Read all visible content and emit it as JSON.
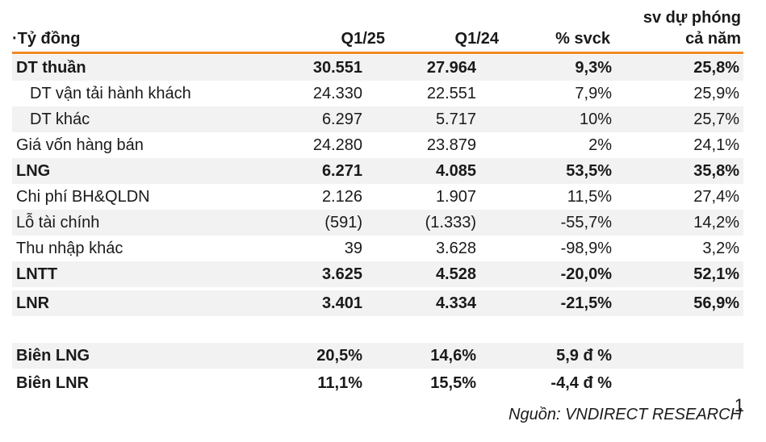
{
  "header": {
    "unit_label": "·Tỷ đồng",
    "col_q125": "Q1/25",
    "col_q124": "Q1/24",
    "col_yoy": "% svck",
    "col_fy_line1": "sv dự phóng",
    "col_fy_line2": "cả năm"
  },
  "rows": [
    {
      "label": "DT thuần",
      "q125": "30.551",
      "q124": "27.964",
      "yoy": "9,3%",
      "fy": "25,8%"
    },
    {
      "label": "DT vận tải hành khách",
      "q125": "24.330",
      "q124": "22.551",
      "yoy": "7,9%",
      "fy": "25,9%"
    },
    {
      "label": "DT khác",
      "q125": "6.297",
      "q124": "5.717",
      "yoy": "10%",
      "fy": "25,7%"
    },
    {
      "label": "Giá vốn hàng bán",
      "q125": "24.280",
      "q124": "23.879",
      "yoy": "2%",
      "fy": "24,1%"
    },
    {
      "label": "LNG",
      "q125": "6.271",
      "q124": "4.085",
      "yoy": "53,5%",
      "fy": "35,8%"
    },
    {
      "label": "Chi phí BH&QLDN",
      "q125": "2.126",
      "q124": "1.907",
      "yoy": "11,5%",
      "fy": "27,4%"
    },
    {
      "label": "Lỗ tài chính",
      "q125": "(591)",
      "q124": "(1.333)",
      "yoy": "-55,7%",
      "fy": "14,2%"
    },
    {
      "label": "Thu nhập khác",
      "q125": "39",
      "q124": "3.628",
      "yoy": "-98,9%",
      "fy": "3,2%"
    },
    {
      "label": "LNTT",
      "q125": "3.625",
      "q124": "4.528",
      "yoy": "-20,0%",
      "fy": "52,1%"
    },
    {
      "label": "LNR",
      "q125": "3.401",
      "q124": "4.334",
      "yoy": "-21,5%",
      "fy": "56,9%"
    },
    {
      "label": "Biên LNG",
      "q125": "20,5%",
      "q124": "14,6%",
      "yoy": "5,9 đ %",
      "fy": ""
    },
    {
      "label": "Biên LNR",
      "q125": "11,1%",
      "q124": "15,5%",
      "yoy": "-4,4 đ %",
      "fy": ""
    }
  ],
  "footer": {
    "source": "Nguồn: VNDIRECT RESEARCH",
    "page_number": "1"
  },
  "colors": {
    "accent": "#f08a24",
    "row_shade": "#f2f2f2"
  }
}
